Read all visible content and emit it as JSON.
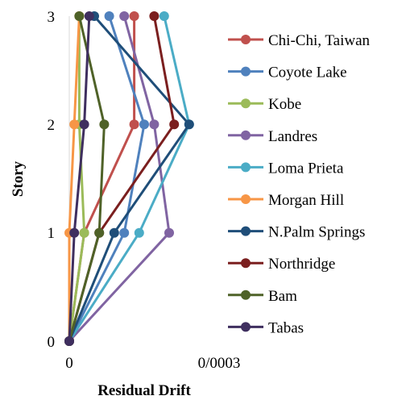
{
  "chart_data": {
    "type": "line",
    "orientation": "horizontal-x-value, vertical-y-story",
    "xlabel": "Residual Drift",
    "ylabel": "Story",
    "x_tick_labels": [
      "0",
      "0/0003"
    ],
    "xlim": [
      0,
      0.0003
    ],
    "ylim": [
      0,
      3
    ],
    "y_ticks": [
      0,
      1,
      2,
      3
    ],
    "grid": false,
    "legend_position": "right",
    "series": [
      {
        "name": "Chi-Chi, Taiwan",
        "color": "#c0504d",
        "x": [
          0,
          3e-05,
          0.00013,
          0.00013
        ],
        "y": [
          0,
          1,
          2,
          3
        ]
      },
      {
        "name": "Coyote Lake",
        "color": "#4f81bd",
        "x": [
          0,
          0.00011,
          0.00015,
          8e-05
        ],
        "y": [
          0,
          1,
          2,
          3
        ]
      },
      {
        "name": "Kobe",
        "color": "#9bbb59",
        "x": [
          0,
          3e-05,
          2e-05,
          2e-05
        ],
        "y": [
          0,
          1,
          2,
          3
        ]
      },
      {
        "name": "Landres",
        "color": "#8064a2",
        "x": [
          0,
          0.0002,
          0.00017,
          0.00011
        ],
        "y": [
          0,
          1,
          2,
          3
        ]
      },
      {
        "name": "Loma Prieta",
        "color": "#4bacc6",
        "x": [
          0,
          0.00014,
          0.00024,
          0.00019
        ],
        "y": [
          0,
          1,
          2,
          3
        ]
      },
      {
        "name": "Morgan Hill",
        "color": "#f79646",
        "x": [
          0,
          0,
          1e-05,
          2e-05
        ],
        "y": [
          0,
          1,
          2,
          3
        ]
      },
      {
        "name": "N.Palm Springs",
        "color": "#1f4e79",
        "x": [
          0,
          9e-05,
          0.00024,
          5e-05
        ],
        "y": [
          0,
          1,
          2,
          3
        ]
      },
      {
        "name": "Northridge",
        "color": "#7b1f1f",
        "x": [
          0,
          6e-05,
          0.00021,
          0.00017
        ],
        "y": [
          0,
          1,
          2,
          3
        ]
      },
      {
        "name": "Bam",
        "color": "#4f6228",
        "x": [
          0,
          6e-05,
          7e-05,
          2e-05
        ],
        "y": [
          0,
          1,
          2,
          3
        ]
      },
      {
        "name": "Tabas",
        "color": "#3f2f5f",
        "x": [
          0,
          1e-05,
          3e-05,
          4e-05
        ],
        "y": [
          0,
          1,
          2,
          3
        ]
      }
    ]
  }
}
